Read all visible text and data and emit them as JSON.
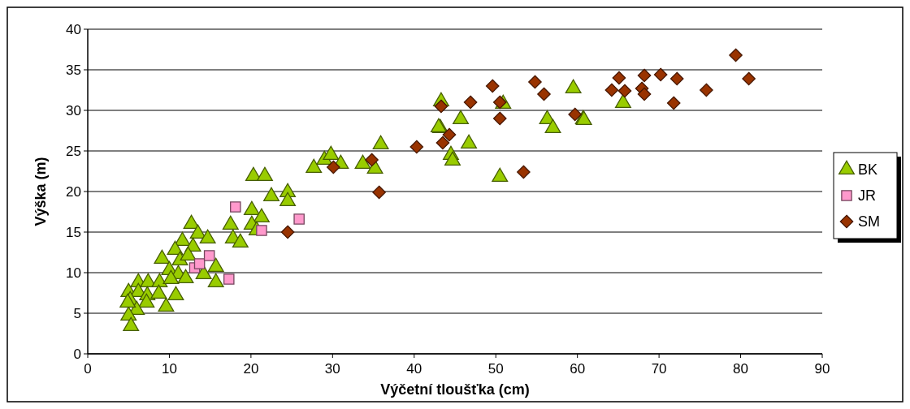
{
  "chart_data": {
    "type": "scatter",
    "xlabel": "Výčetní tloušťka (cm)",
    "ylabel": "Výška (m)",
    "xlim": [
      0,
      90
    ],
    "xticks": [
      0,
      10,
      20,
      30,
      40,
      50,
      60,
      70,
      80,
      90
    ],
    "ylim": [
      0,
      40
    ],
    "yticks": [
      0,
      5,
      10,
      15,
      20,
      25,
      30,
      35,
      40
    ],
    "grid": "y",
    "legend": "right",
    "series": [
      {
        "name": "BK",
        "color": "#99cc00",
        "marker": "triangle",
        "x": [
          12.7,
          13.5,
          14.7,
          17.5,
          17.8,
          18.7,
          11.6,
          10.7,
          12.9,
          9.1,
          11.3,
          12.3,
          15.7,
          10.0,
          11.1,
          12.0,
          14.2,
          15.7,
          6.2,
          7.4,
          8.8,
          10.2,
          5.0,
          6.2,
          7.3,
          8.7,
          5.2,
          7.2,
          9.6,
          6.0,
          10.8,
          5.0,
          5.3,
          4.9,
          20.3,
          21.7,
          22.5,
          24.5,
          24.5,
          20.1,
          21.3,
          20.1,
          20.7,
          21.2,
          27.7,
          29.0,
          29.8,
          31.0,
          33.7,
          35.2,
          35.9,
          43.2,
          44.5,
          43.3,
          43.0,
          45.7,
          44.7,
          46.7,
          50.9,
          50.5,
          56.3,
          57.0,
          59.5,
          60.7,
          65.6,
          60.8
        ],
        "values": [
          16.0,
          14.8,
          14.2,
          15.9,
          14.2,
          13.7,
          13.9,
          12.8,
          13.2,
          11.7,
          11.5,
          12.1,
          10.7,
          10.3,
          9.8,
          9.3,
          9.8,
          8.8,
          8.8,
          8.8,
          8.8,
          9.2,
          7.6,
          7.6,
          7.2,
          7.4,
          6.6,
          6.3,
          5.8,
          5.4,
          7.2,
          4.7,
          3.4,
          6.3,
          21.9,
          21.9,
          19.4,
          19.9,
          18.8,
          17.7,
          16.8,
          15.9,
          15.2,
          null,
          22.9,
          23.9,
          24.5,
          23.4,
          23.4,
          22.8,
          25.8,
          27.8,
          24.5,
          31.1,
          27.9,
          28.9,
          23.8,
          25.9,
          30.8,
          21.8,
          28.9,
          27.8,
          32.7,
          28.9,
          30.9,
          28.8
        ]
      },
      {
        "name": "JR",
        "color": "#ff99cc",
        "marker": "square",
        "x": [
          13.1,
          13.7,
          14.9,
          17.3,
          18.1,
          21.3,
          25.9
        ],
        "values": [
          10.6,
          11.1,
          12.1,
          9.2,
          18.1,
          15.2,
          16.6
        ]
      },
      {
        "name": "SM",
        "color": "#993300",
        "marker": "diamond",
        "x": [
          24.5,
          35.7,
          30.1,
          34.8,
          40.3,
          43.3,
          44.3,
          43.5,
          46.9,
          49.6,
          50.5,
          50.5,
          53.4,
          54.8,
          55.9,
          59.7,
          65.1,
          64.2,
          65.8,
          68.2,
          67.9,
          68.2,
          70.2,
          72.2,
          71.8,
          75.8,
          79.4,
          81.0
        ],
        "values": [
          15.0,
          19.9,
          23.0,
          23.9,
          25.5,
          30.5,
          27.0,
          26.0,
          31.0,
          33.0,
          31.0,
          29.0,
          22.4,
          33.5,
          32.0,
          29.5,
          34.0,
          32.5,
          32.4,
          34.3,
          32.7,
          32.0,
          34.4,
          33.9,
          30.9,
          32.5,
          36.8,
          33.9
        ]
      }
    ]
  }
}
